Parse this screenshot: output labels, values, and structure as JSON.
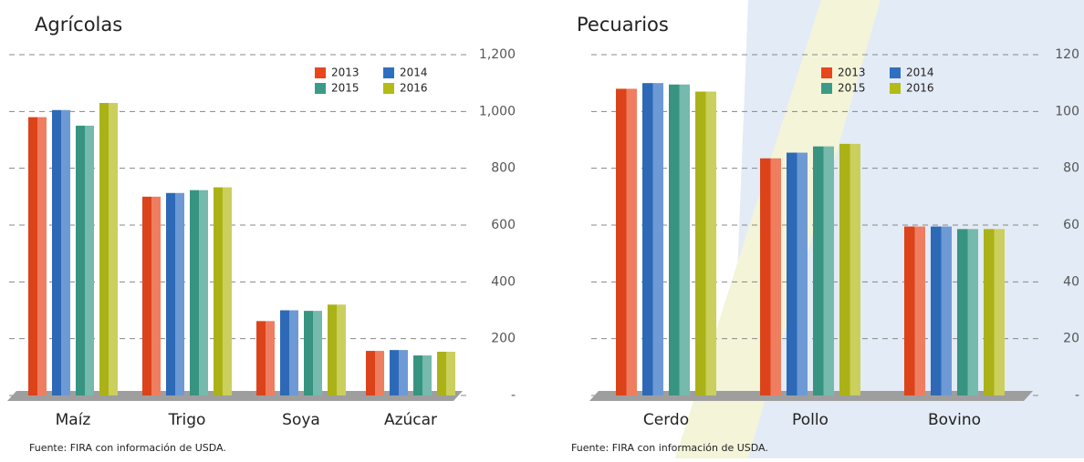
{
  "chart_data": [
    {
      "type": "bar",
      "title": "Agrícolas",
      "source": "Fuente: FIRA con información de USDA.",
      "categories": [
        "Maíz",
        "Trigo",
        "Soya",
        "Azúcar"
      ],
      "series": [
        {
          "name": "2013",
          "color": "#e8461c",
          "values": [
            980,
            700,
            262,
            157
          ]
        },
        {
          "name": "2014",
          "color": "#2f6fc1",
          "values": [
            1005,
            713,
            300,
            160
          ]
        },
        {
          "name": "2015",
          "color": "#3a9c88",
          "values": [
            950,
            723,
            298,
            141
          ]
        },
        {
          "name": "2016",
          "color": "#b4bb18",
          "values": [
            1030,
            733,
            320,
            154
          ]
        }
      ],
      "ylim": [
        0,
        1200
      ],
      "yticks": [
        {
          "value": 0,
          "label": "-"
        },
        200,
        400,
        600,
        800,
        {
          "value": 1000,
          "label": "1,000"
        },
        {
          "value": 1200,
          "label": "1,200"
        }
      ],
      "grid": true
    },
    {
      "type": "bar",
      "title": "Pecuarios",
      "source": "Fuente: FIRA con información de USDA.",
      "categories": [
        "Cerdo",
        "Pollo",
        "Bovino"
      ],
      "series": [
        {
          "name": "2013",
          "color": "#e8461c",
          "values": [
            108,
            83.5,
            59.5
          ]
        },
        {
          "name": "2014",
          "color": "#2f6fc1",
          "values": [
            110,
            85.5,
            59.5
          ]
        },
        {
          "name": "2015",
          "color": "#3a9c88",
          "values": [
            109.5,
            87.7,
            58.6
          ]
        },
        {
          "name": "2016",
          "color": "#b4bb18",
          "values": [
            107,
            88.6,
            58.6
          ]
        }
      ],
      "ylim": [
        0,
        120
      ],
      "yticks": [
        {
          "value": 0,
          "label": "-"
        },
        20,
        40,
        60,
        80,
        100,
        120
      ],
      "grid": true
    }
  ]
}
